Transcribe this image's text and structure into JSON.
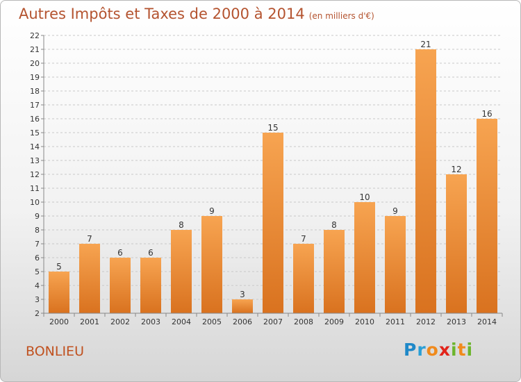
{
  "title": "Autres Impôts et Taxes de 2000 à 2014",
  "unit": "(en milliers d'€)",
  "commune": "BONLIEU",
  "logo": {
    "letters": [
      {
        "char": "P",
        "color": "#1e88c8"
      },
      {
        "char": "r",
        "color": "#2a9fd6"
      },
      {
        "char": "o",
        "color": "#f08a1c"
      },
      {
        "char": "x",
        "color": "#e2231a"
      },
      {
        "char": "i",
        "color": "#6cb52d"
      },
      {
        "char": "t",
        "color": "#f08a1c"
      },
      {
        "char": "i",
        "color": "#6cb52d"
      }
    ]
  },
  "colors": {
    "bar_light": "#f7a451",
    "bar_dark": "#d9721f",
    "title": "#b4532f",
    "commune": "#c0511f",
    "grid": "#c8c8c8",
    "axis_text": "#333333"
  },
  "chart_data": {
    "type": "bar",
    "categories": [
      "2000",
      "2001",
      "2002",
      "2003",
      "2004",
      "2005",
      "2006",
      "2007",
      "2008",
      "2009",
      "2010",
      "2011",
      "2012",
      "2013",
      "2014"
    ],
    "values": [
      5,
      7,
      6,
      6,
      8,
      9,
      3,
      15,
      7,
      8,
      10,
      9,
      21,
      12,
      16
    ],
    "ylim": [
      2,
      22
    ],
    "yticks": [
      2,
      3,
      4,
      5,
      6,
      7,
      8,
      9,
      10,
      11,
      12,
      13,
      14,
      15,
      16,
      17,
      18,
      19,
      20,
      21,
      22
    ],
    "grid": "horizontal dashed",
    "data_labels": true,
    "legend": false
  }
}
